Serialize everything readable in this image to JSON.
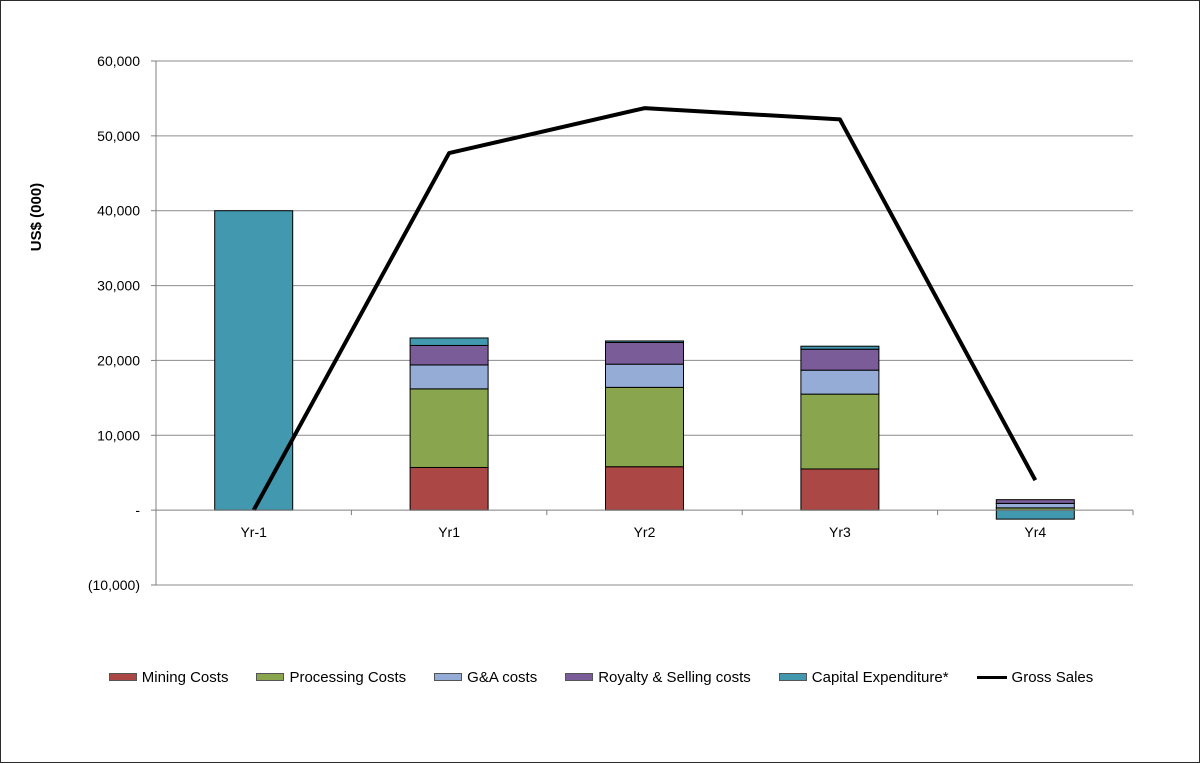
{
  "chart_data": {
    "type": "bar",
    "stacked": true,
    "ylabel": "US$ (000)",
    "ylim": [
      -10000,
      60000
    ],
    "y_ticks": [
      {
        "value": 60000,
        "label": "60,000"
      },
      {
        "value": 50000,
        "label": "50,000"
      },
      {
        "value": 40000,
        "label": "40,000"
      },
      {
        "value": 30000,
        "label": "30,000"
      },
      {
        "value": 20000,
        "label": "20,000"
      },
      {
        "value": 10000,
        "label": "10,000"
      },
      {
        "value": 0,
        "label": "-"
      },
      {
        "value": -10000,
        "label": "(10,000)"
      }
    ],
    "grid": true,
    "legend_position": "bottom",
    "categories": [
      "Yr-1",
      "Yr1",
      "Yr2",
      "Yr3",
      "Yr4"
    ],
    "series": [
      {
        "name": "Mining Costs",
        "type": "bar",
        "color": "#ab4744",
        "values": [
          0,
          5700,
          5800,
          5500,
          0
        ]
      },
      {
        "name": "Processing Costs",
        "type": "bar",
        "color": "#89a54e",
        "values": [
          0,
          10500,
          10600,
          10000,
          300
        ]
      },
      {
        "name": "G&A costs",
        "type": "bar",
        "color": "#95acd6",
        "values": [
          0,
          3200,
          3100,
          3200,
          600
        ]
      },
      {
        "name": "Royalty & Selling costs",
        "type": "bar",
        "color": "#7a5c98",
        "values": [
          0,
          2600,
          2900,
          2800,
          500
        ]
      },
      {
        "name": "Capital Expenditure*",
        "type": "bar",
        "color": "#4198af",
        "values": [
          40000,
          1000,
          200,
          400,
          -1200
        ]
      },
      {
        "name": "Gross Sales",
        "type": "line",
        "color": "#000000",
        "values": [
          0,
          47700,
          53700,
          52200,
          4000
        ]
      }
    ]
  }
}
